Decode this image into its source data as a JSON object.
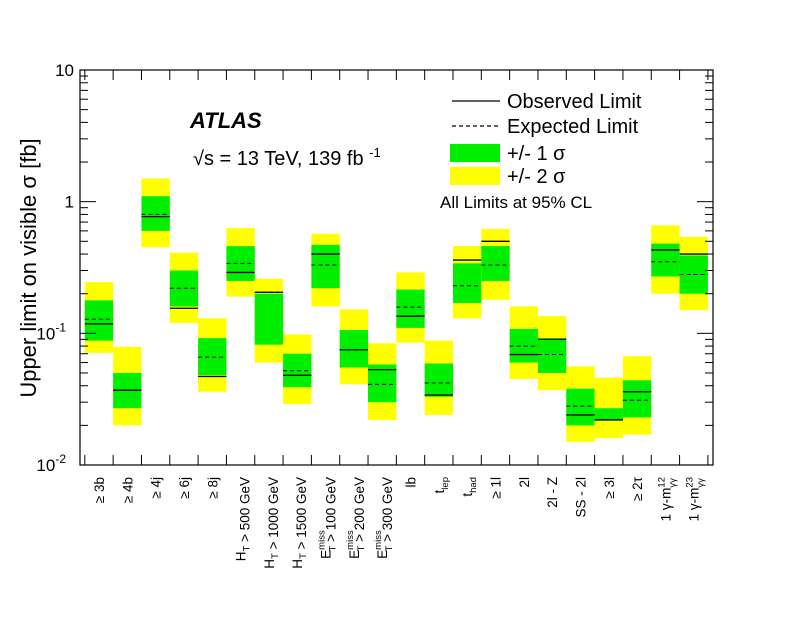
{
  "chart_data": {
    "type": "bar",
    "title": "",
    "ylabel": "Upper limit on visible σ [fb]",
    "xlabel": "",
    "yscale": "log",
    "ylim": [
      0.01,
      10
    ],
    "yticks": [
      {
        "value": 0.01,
        "base": "10",
        "exp": "-2"
      },
      {
        "value": 0.1,
        "base": "10",
        "exp": "-1"
      },
      {
        "value": 1,
        "base": "1",
        "exp": ""
      },
      {
        "value": 10,
        "base": "10",
        "exp": ""
      }
    ],
    "annotations": {
      "experiment": "ATLAS",
      "energy": "= 13 TeV, 139 fb",
      "energy_prefix": "√s",
      "energy_exp": "-1",
      "cl_note": "All Limits at 95% CL"
    },
    "legend": {
      "position": "top-right",
      "entries": [
        {
          "label": "Observed Limit",
          "style": "solid-line"
        },
        {
          "label": "Expected Limit",
          "style": "dashed-line"
        },
        {
          "label": "+/- 1 σ",
          "style": "box",
          "color": "#00ee00"
        },
        {
          "label": "+/- 2 σ",
          "style": "box",
          "color": "#ffff00"
        }
      ]
    },
    "colors": {
      "one_sigma": "#00ee00",
      "two_sigma": "#ffff00",
      "line": "#000000"
    },
    "categories": [
      {
        "main": "≥ 3b",
        "sub": "",
        "sup": "",
        "tail": ""
      },
      {
        "main": "≥ 4b",
        "sub": "",
        "sup": "",
        "tail": ""
      },
      {
        "main": "≥ 4j",
        "sub": "",
        "sup": "",
        "tail": ""
      },
      {
        "main": "≥ 6j",
        "sub": "",
        "sup": "",
        "tail": ""
      },
      {
        "main": "≥ 8j",
        "sub": "",
        "sup": "",
        "tail": ""
      },
      {
        "main": "H",
        "sub": "T",
        "sup": "",
        "tail": " > 500 GeV"
      },
      {
        "main": "H",
        "sub": "T",
        "sup": "",
        "tail": " > 1000 GeV"
      },
      {
        "main": "H",
        "sub": "T",
        "sup": "",
        "tail": " > 1500 GeV"
      },
      {
        "main": "E",
        "sub": "T",
        "sup": "miss",
        "tail": " > 100 GeV"
      },
      {
        "main": "E",
        "sub": "T",
        "sup": "miss",
        "tail": " > 200 GeV"
      },
      {
        "main": "E",
        "sub": "T",
        "sup": "miss",
        "tail": " > 300 GeV"
      },
      {
        "main": "lb",
        "sub": "",
        "sup": "",
        "tail": ""
      },
      {
        "main": "t",
        "sub": "lep",
        "sup": "",
        "tail": ""
      },
      {
        "main": "t",
        "sub": "had",
        "sup": "",
        "tail": ""
      },
      {
        "main": "≥ 1l",
        "sub": "",
        "sup": "",
        "tail": ""
      },
      {
        "main": "2l",
        "sub": "",
        "sup": "",
        "tail": ""
      },
      {
        "main": "2l - Z",
        "sub": "",
        "sup": "",
        "tail": ""
      },
      {
        "main": "SS - 2l",
        "sub": "",
        "sup": "",
        "tail": ""
      },
      {
        "main": "≥ 3l",
        "sub": "",
        "sup": "",
        "tail": ""
      },
      {
        "main": "≥ 2τ",
        "sub": "",
        "sup": "",
        "tail": ""
      },
      {
        "main": "1 γ-m",
        "sub": "γγ",
        "sup": "12",
        "tail": ""
      },
      {
        "main": "1 γ-m",
        "sub": "γγ",
        "sup": "23",
        "tail": ""
      }
    ],
    "series": [
      {
        "name": "Observed Limit",
        "values": [
          0.118,
          0.037,
          0.77,
          0.155,
          0.047,
          0.29,
          0.205,
          0.048,
          0.4,
          0.075,
          0.053,
          0.135,
          0.034,
          0.36,
          0.5,
          0.069,
          0.09,
          0.024,
          0.022,
          0.036,
          0.43,
          0.4
        ]
      },
      {
        "name": "Expected Limit",
        "values": [
          0.128,
          0.037,
          0.8,
          0.22,
          0.066,
          0.34,
          0.205,
          0.052,
          0.33,
          0.075,
          0.041,
          0.158,
          0.042,
          0.23,
          0.33,
          0.08,
          0.069,
          0.028,
          0.022,
          0.031,
          0.35,
          0.28
        ]
      },
      {
        "name": "+/- 1 σ",
        "low": [
          0.088,
          0.027,
          0.6,
          0.16,
          0.048,
          0.25,
          0.082,
          0.039,
          0.22,
          0.055,
          0.03,
          0.11,
          0.033,
          0.17,
          0.25,
          0.06,
          0.05,
          0.02,
          0.022,
          0.023,
          0.27,
          0.2
        ],
        "high": [
          0.178,
          0.05,
          1.1,
          0.3,
          0.092,
          0.46,
          0.2,
          0.07,
          0.47,
          0.106,
          0.058,
          0.215,
          0.059,
          0.34,
          0.46,
          0.108,
          0.092,
          0.038,
          0.027,
          0.044,
          0.48,
          0.39
        ]
      },
      {
        "name": "+/- 2 σ",
        "low": [
          0.071,
          0.02,
          0.45,
          0.12,
          0.036,
          0.19,
          0.06,
          0.029,
          0.16,
          0.041,
          0.022,
          0.085,
          0.024,
          0.13,
          0.18,
          0.045,
          0.037,
          0.015,
          0.016,
          0.017,
          0.2,
          0.15
        ],
        "high": [
          0.245,
          0.079,
          1.5,
          0.41,
          0.13,
          0.63,
          0.26,
          0.098,
          0.57,
          0.152,
          0.084,
          0.29,
          0.088,
          0.46,
          0.62,
          0.16,
          0.135,
          0.056,
          0.046,
          0.067,
          0.66,
          0.54
        ]
      }
    ]
  }
}
